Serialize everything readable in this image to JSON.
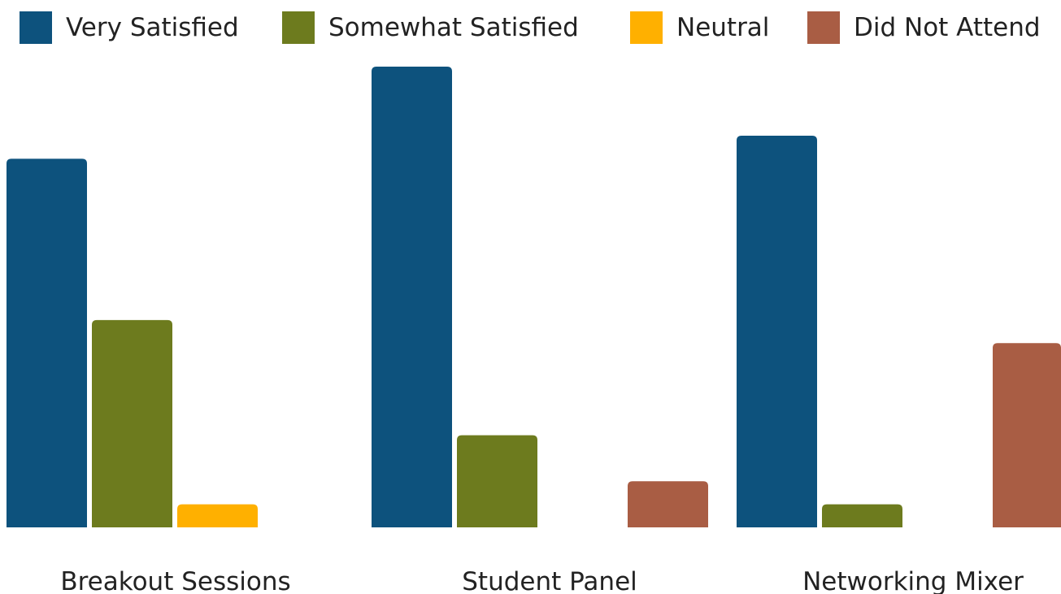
{
  "chart_data": {
    "type": "bar",
    "categories": [
      "Breakout Sessions",
      "Student Panel",
      "Networking Mixer"
    ],
    "series": [
      {
        "name": "Very Satisfied",
        "color": "#0d527d",
        "values": [
          16,
          20,
          17
        ]
      },
      {
        "name": "Somewhat Satisfied",
        "color": "#6d7b1e",
        "values": [
          9,
          4,
          1
        ]
      },
      {
        "name": "Neutral",
        "color": "#ffb000",
        "values": [
          1,
          0,
          0
        ]
      },
      {
        "name": "Did Not Attend",
        "color": "#a95d44",
        "values": [
          0,
          2,
          8
        ]
      }
    ],
    "ylim": [
      0,
      20
    ],
    "grid": false,
    "legend": "top"
  }
}
